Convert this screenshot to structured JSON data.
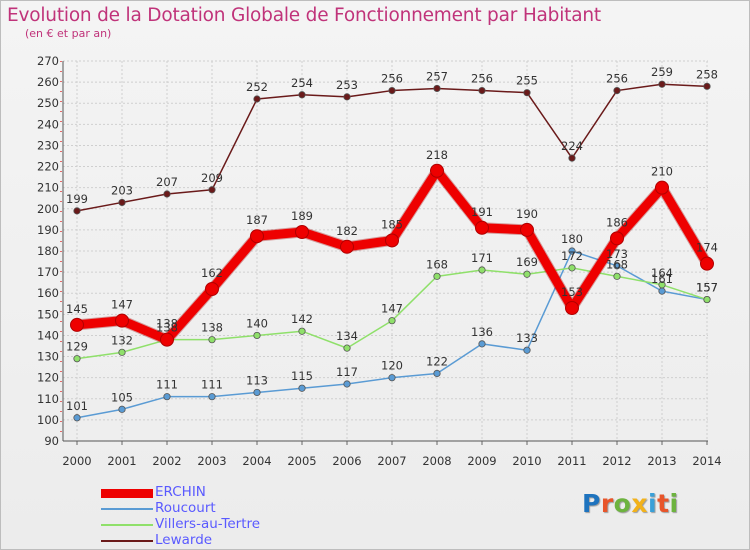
{
  "header": {
    "title": "Evolution de la Dotation Globale de Fonctionnement par Habitant",
    "subtitle": "(en € et par an)"
  },
  "logo": {
    "text": "Proxiti",
    "colors": [
      "#1e73be",
      "#e8552a",
      "#6db33f",
      "#f2b21b",
      "#3aa0d8",
      "#e8552a",
      "#6db33f"
    ]
  },
  "chart_data": {
    "type": "line",
    "title": "Evolution de la Dotation Globale de Fonctionnement par Habitant",
    "subtitle": "(en € et par an)",
    "xlabel": "",
    "ylabel": "",
    "ylim": [
      90,
      270
    ],
    "yticks": [
      90,
      100,
      110,
      120,
      130,
      140,
      150,
      160,
      170,
      180,
      190,
      200,
      210,
      220,
      230,
      240,
      250,
      260,
      270
    ],
    "grid": true,
    "legend_position": "bottom-left",
    "x": [
      "2000",
      "2001",
      "2002",
      "2003",
      "2004",
      "2005",
      "2006",
      "2007",
      "2008",
      "2009",
      "2010",
      "2011",
      "2012",
      "2013",
      "2014"
    ],
    "series": [
      {
        "name": "ERCHIN",
        "color": "#ee0000",
        "emphasis": true,
        "values": [
          145,
          147,
          138,
          162,
          187,
          189,
          182,
          185,
          218,
          191,
          190,
          153,
          186,
          210,
          174
        ]
      },
      {
        "name": "Roucourt",
        "color": "#5a9bd4",
        "emphasis": false,
        "values": [
          101,
          105,
          111,
          111,
          113,
          115,
          117,
          120,
          122,
          136,
          133,
          180,
          173,
          161,
          157
        ]
      },
      {
        "name": "Villers-au-Tertre",
        "color": "#8fe06a",
        "emphasis": false,
        "values": [
          129,
          132,
          138,
          138,
          140,
          142,
          134,
          147,
          168,
          171,
          169,
          172,
          168,
          164,
          157
        ]
      },
      {
        "name": "Lewarde",
        "color": "#6a1a1a",
        "emphasis": false,
        "values": [
          199,
          203,
          207,
          209,
          252,
          254,
          253,
          256,
          257,
          256,
          255,
          224,
          256,
          259,
          258
        ]
      }
    ]
  }
}
